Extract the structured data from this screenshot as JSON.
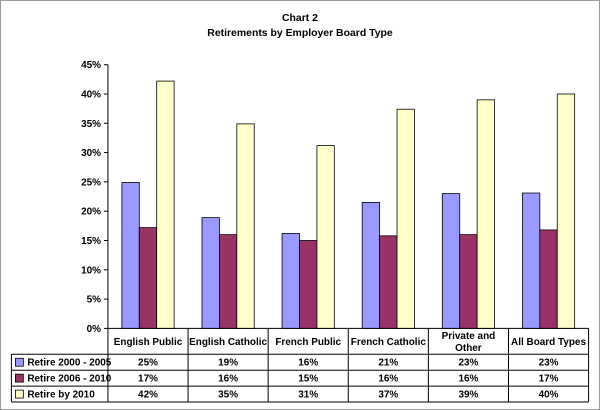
{
  "chart_data": {
    "type": "bar",
    "title": "Chart 2",
    "subtitle": "Retirements by Employer Board Type",
    "categories": [
      [
        "English Public"
      ],
      [
        "English Catholic"
      ],
      [
        "French Public"
      ],
      [
        "French Catholic"
      ],
      [
        "Private and",
        "Other"
      ],
      [
        "All Board Types"
      ]
    ],
    "series": [
      {
        "name": "Retire 2000 - 2005",
        "color": "#9999ff",
        "values": [
          0.249,
          0.189,
          0.162,
          0.215,
          0.23,
          0.231
        ],
        "labels": [
          "25%",
          "19%",
          "16%",
          "21%",
          "23%",
          "23%"
        ]
      },
      {
        "name": "Retire 2006 - 2010",
        "color": "#993366",
        "values": [
          0.172,
          0.16,
          0.15,
          0.158,
          0.16,
          0.168
        ],
        "labels": [
          "17%",
          "16%",
          "15%",
          "16%",
          "16%",
          "17%"
        ]
      },
      {
        "name": "Retire by 2010",
        "color": "#ffffcc",
        "values": [
          0.422,
          0.349,
          0.312,
          0.374,
          0.39,
          0.4
        ],
        "labels": [
          "42%",
          "35%",
          "31%",
          "37%",
          "39%",
          "40%"
        ]
      }
    ],
    "ylim": [
      0,
      0.45
    ],
    "yticks": [
      "0%",
      "5%",
      "10%",
      "15%",
      "20%",
      "25%",
      "30%",
      "35%",
      "40%",
      "45%"
    ],
    "grid": false,
    "legend": "data-table"
  }
}
